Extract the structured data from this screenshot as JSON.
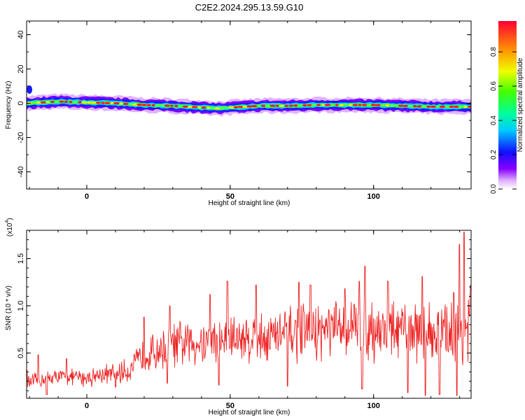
{
  "title": "C2E2.2024.295.13.59.G10",
  "colors": {
    "snr_line": "#ee2222"
  },
  "chart_data": [
    {
      "type": "heatmap",
      "title": "C2E2.2024.295.13.59.G10",
      "xlabel": "Height of straight line (km)",
      "ylabel": "Frequency (Hz)",
      "xlim": [
        -21,
        134
      ],
      "ylim": [
        -50,
        48
      ],
      "x_ticks": [
        0,
        50,
        100
      ],
      "y_ticks": [
        40,
        20,
        0,
        -20,
        -40
      ],
      "x_tick_labels": [
        "0",
        "50",
        "100"
      ],
      "y_tick_labels": [
        "40",
        "20",
        "0",
        "-20",
        "-40"
      ],
      "colorbar": {
        "label": "Normalized spectral amplitude",
        "range": [
          0,
          0.98
        ],
        "ticks": [
          0.0,
          0.2,
          0.4,
          0.6,
          0.8
        ],
        "tick_labels": [
          "0.0",
          "0.2",
          "0.4",
          "0.6",
          "0.8"
        ]
      },
      "ridge": {
        "x": [
          -21,
          -10,
          0,
          10,
          20,
          30,
          40,
          47,
          50,
          60,
          70,
          80,
          90,
          100,
          110,
          120,
          134
        ],
        "freq_hz": [
          0,
          1,
          0.5,
          0,
          -1,
          -1.5,
          -2.5,
          -3,
          -2.5,
          -1.5,
          -1.5,
          -1,
          -1,
          -1,
          -1.5,
          -2,
          -2
        ]
      },
      "grid": false
    },
    {
      "type": "line",
      "xlabel": "Height of straight line (km)",
      "ylabel": "SNR (10 * v/v)",
      "y_multiplier": "(x10",
      "y_multiplier_exp": "4",
      "y_multiplier_close": ")",
      "xlim": [
        -21,
        134
      ],
      "ylim": [
        0.02,
        1.8
      ],
      "x_ticks": [
        0,
        50,
        100
      ],
      "y_ticks": [
        0.5,
        1.0,
        1.5
      ],
      "x_tick_labels": [
        "0",
        "50",
        "100"
      ],
      "y_tick_labels": [
        "0.5",
        "1.0",
        "1.5"
      ],
      "series": [
        {
          "trend_x": [
            -21,
            -15,
            -10,
            -5,
            0,
            5,
            10,
            15,
            20,
            30,
            40,
            50,
            60,
            70,
            80,
            90,
            95,
            100,
            110,
            120,
            125,
            130,
            134
          ],
          "trend_y": [
            0.18,
            0.22,
            0.25,
            0.24,
            0.24,
            0.27,
            0.28,
            0.32,
            0.48,
            0.58,
            0.62,
            0.65,
            0.67,
            0.7,
            0.72,
            0.75,
            0.77,
            0.75,
            0.72,
            0.72,
            0.7,
            0.72,
            0.75
          ],
          "spread": [
            0.1,
            0.1,
            0.1,
            0.1,
            0.12,
            0.12,
            0.14,
            0.15,
            0.22,
            0.28,
            0.3,
            0.32,
            0.32,
            0.34,
            0.35,
            0.36,
            0.4,
            0.4,
            0.38,
            0.38,
            0.38,
            0.5,
            0.5
          ],
          "peaks": [
            [
              -21,
              0.32
            ],
            [
              -17,
              0.48
            ],
            [
              -7,
              0.44
            ],
            [
              20,
              0.88
            ],
            [
              29,
              1.0
            ],
            [
              43,
              1.12
            ],
            [
              49,
              1.26
            ],
            [
              59,
              1.22
            ],
            [
              74,
              1.25
            ],
            [
              78,
              1.22
            ],
            [
              90,
              1.18
            ],
            [
              95,
              1.26
            ],
            [
              97,
              1.42
            ],
            [
              105,
              1.26
            ],
            [
              112,
              1.26
            ],
            [
              117,
              1.31
            ],
            [
              128,
              1.14
            ],
            [
              130,
              1.65
            ],
            [
              131.5,
              1.78
            ],
            [
              134,
              1.22
            ]
          ],
          "troughs": [
            [
              -14,
              0.06
            ],
            [
              10,
              0.14
            ],
            [
              28,
              0.18
            ],
            [
              46,
              0.16
            ],
            [
              70,
              0.15
            ],
            [
              96,
              0.12
            ],
            [
              112,
              0.08
            ],
            [
              118,
              0.05
            ],
            [
              123,
              0.06
            ],
            [
              129,
              0.05
            ]
          ]
        }
      ]
    }
  ]
}
